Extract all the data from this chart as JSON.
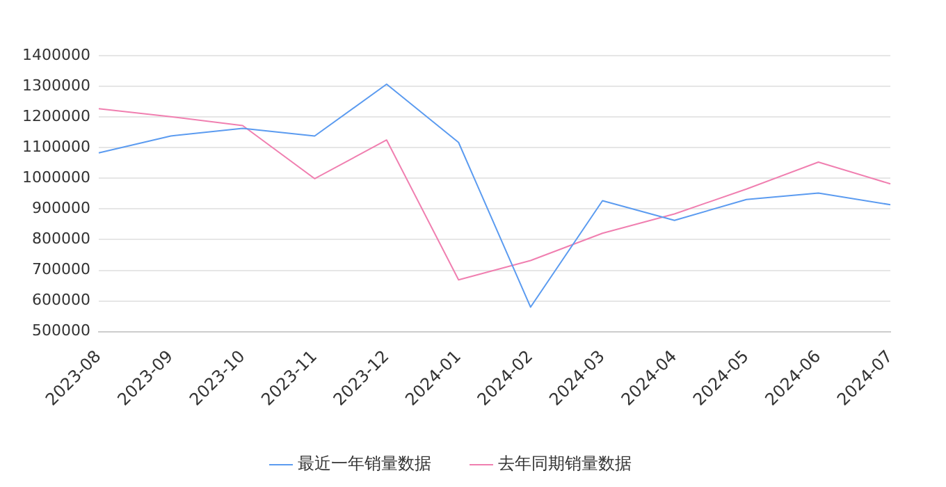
{
  "chart_data": {
    "type": "line",
    "categories": [
      "2023-08",
      "2023-09",
      "2023-10",
      "2023-11",
      "2023-12",
      "2024-01",
      "2024-02",
      "2024-03",
      "2024-04",
      "2024-05",
      "2024-06",
      "2024-07"
    ],
    "series": [
      {
        "name": "最近一年销量数据",
        "color": "#5b9bf0",
        "values": [
          1083000,
          1138000,
          1163000,
          1138000,
          1307000,
          1117000,
          580000,
          927000,
          863000,
          931000,
          952000,
          914000
        ]
      },
      {
        "name": "去年同期销量数据",
        "color": "#f07fb0",
        "values": [
          1227000,
          1201000,
          1172000,
          999000,
          1125000,
          669000,
          732000,
          821000,
          884000,
          965000,
          1053000,
          982000
        ]
      }
    ],
    "ylim": [
      500000,
      1400000
    ],
    "yticks": [
      500000,
      600000,
      700000,
      800000,
      900000,
      1000000,
      1100000,
      1200000,
      1300000,
      1400000
    ],
    "grid": "y",
    "legend": "bottom",
    "marker": "none",
    "line_style": "solid"
  }
}
